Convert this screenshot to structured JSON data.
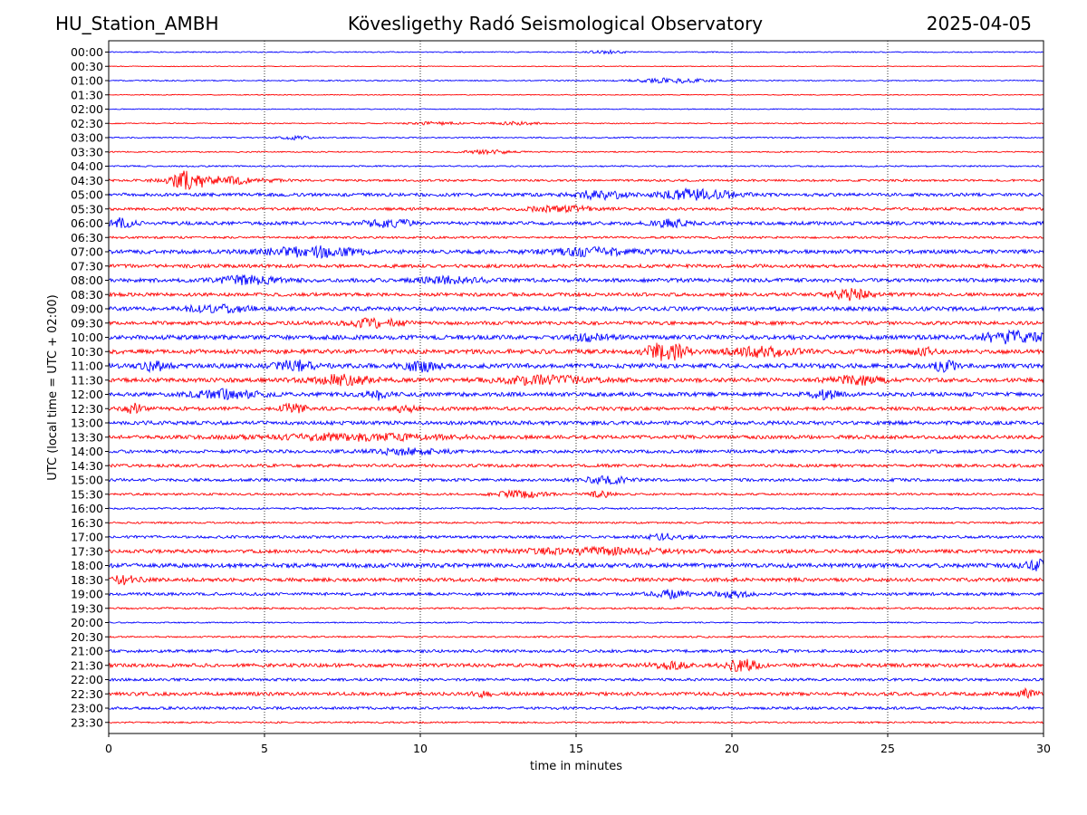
{
  "header": {
    "station": "HU_Station_AMBH",
    "title": "Kövesligethy Radó Seismological Observatory",
    "date": "2025-04-05"
  },
  "chart_data": {
    "type": "line",
    "xlabel": "time in minutes",
    "ylabel": "UTC (local time = UTC + 02:00)",
    "xlim": [
      0,
      30
    ],
    "x_ticks": [
      0,
      5,
      10,
      15,
      20,
      25,
      30
    ],
    "vertical_grid": "dotted at each 5 minutes",
    "colors": {
      "even_hour": "#0000ff",
      "half_hour": "#ff0000"
    },
    "rows": [
      "00:00",
      "00:30",
      "01:00",
      "01:30",
      "02:00",
      "02:30",
      "03:00",
      "03:30",
      "04:00",
      "04:30",
      "05:00",
      "05:30",
      "06:00",
      "06:30",
      "07:00",
      "07:30",
      "08:00",
      "08:30",
      "09:00",
      "09:30",
      "10:00",
      "10:30",
      "11:00",
      "11:30",
      "12:00",
      "12:30",
      "13:00",
      "13:30",
      "14:00",
      "14:30",
      "15:00",
      "15:30",
      "16:00",
      "16:30",
      "17:00",
      "17:30",
      "18:00",
      "18:30",
      "19:00",
      "19:30",
      "20:00",
      "20:30",
      "21:00",
      "21:30",
      "22:00",
      "22:30",
      "23:00",
      "23:30"
    ],
    "noise_level": [
      0.6,
      0.4,
      0.6,
      0.5,
      0.5,
      0.6,
      0.7,
      0.7,
      0.8,
      1.2,
      1.8,
      1.6,
      1.9,
      1.2,
      2.2,
      1.9,
      2.1,
      1.9,
      2.2,
      2.0,
      2.4,
      2.5,
      2.5,
      2.3,
      2.2,
      2.0,
      2.1,
      2.0,
      1.8,
      1.7,
      1.6,
      1.2,
      1.0,
      1.0,
      1.5,
      2.0,
      2.4,
      2.0,
      1.6,
      1.0,
      0.7,
      0.9,
      1.6,
      2.0,
      1.5,
      1.9,
      1.5,
      0.9
    ],
    "events": [
      {
        "row": "00:00",
        "min": 16.0,
        "amp": 1.5,
        "dur": 0.6
      },
      {
        "row": "01:00",
        "min": 18.0,
        "amp": 2.5,
        "dur": 1.2
      },
      {
        "row": "02:30",
        "min": 10.5,
        "amp": 1.6,
        "dur": 0.8
      },
      {
        "row": "02:30",
        "min": 13.0,
        "amp": 1.6,
        "dur": 0.8
      },
      {
        "row": "03:00",
        "min": 6.0,
        "amp": 2.0,
        "dur": 0.5
      },
      {
        "row": "03:30",
        "min": 12.2,
        "amp": 2.0,
        "dur": 0.8
      },
      {
        "row": "04:30",
        "min": 2.5,
        "amp": 9.0,
        "dur": 0.5
      },
      {
        "row": "04:30",
        "min": 3.5,
        "amp": 4.0,
        "dur": 1.5
      },
      {
        "row": "05:00",
        "min": 15.8,
        "amp": 4.5,
        "dur": 0.8
      },
      {
        "row": "05:00",
        "min": 18.8,
        "amp": 6.0,
        "dur": 1.2
      },
      {
        "row": "05:30",
        "min": 14.5,
        "amp": 3.0,
        "dur": 1.0
      },
      {
        "row": "06:00",
        "min": 0.4,
        "amp": 5.0,
        "dur": 0.4
      },
      {
        "row": "06:00",
        "min": 9.0,
        "amp": 4.0,
        "dur": 0.8
      },
      {
        "row": "06:00",
        "min": 18.0,
        "amp": 3.5,
        "dur": 0.6
      },
      {
        "row": "07:00",
        "min": 6.5,
        "amp": 5.0,
        "dur": 1.5
      },
      {
        "row": "07:00",
        "min": 15.5,
        "amp": 3.5,
        "dur": 1.5
      },
      {
        "row": "08:00",
        "min": 4.5,
        "amp": 4.0,
        "dur": 1.0
      },
      {
        "row": "08:00",
        "min": 11.0,
        "amp": 3.5,
        "dur": 1.0
      },
      {
        "row": "08:30",
        "min": 23.8,
        "amp": 5.5,
        "dur": 0.6
      },
      {
        "row": "09:00",
        "min": 3.5,
        "amp": 3.5,
        "dur": 1.0
      },
      {
        "row": "09:30",
        "min": 8.5,
        "amp": 4.0,
        "dur": 1.0
      },
      {
        "row": "10:00",
        "min": 29.0,
        "amp": 6.0,
        "dur": 1.0
      },
      {
        "row": "10:00",
        "min": 15.5,
        "amp": 3.5,
        "dur": 0.6
      },
      {
        "row": "10:30",
        "min": 17.9,
        "amp": 10.0,
        "dur": 0.6
      },
      {
        "row": "10:30",
        "min": 21.0,
        "amp": 5.0,
        "dur": 1.0
      },
      {
        "row": "10:30",
        "min": 26.1,
        "amp": 4.5,
        "dur": 0.3
      },
      {
        "row": "11:00",
        "min": 1.5,
        "amp": 5.0,
        "dur": 0.4
      },
      {
        "row": "11:00",
        "min": 6.0,
        "amp": 5.0,
        "dur": 0.6
      },
      {
        "row": "11:00",
        "min": 10.0,
        "amp": 5.0,
        "dur": 0.6
      },
      {
        "row": "11:00",
        "min": 26.8,
        "amp": 6.0,
        "dur": 0.4
      },
      {
        "row": "11:30",
        "min": 7.5,
        "amp": 5.0,
        "dur": 1.0
      },
      {
        "row": "11:30",
        "min": 14.0,
        "amp": 4.0,
        "dur": 1.5
      },
      {
        "row": "11:30",
        "min": 24.0,
        "amp": 4.5,
        "dur": 0.8
      },
      {
        "row": "12:00",
        "min": 3.8,
        "amp": 4.5,
        "dur": 1.0
      },
      {
        "row": "12:00",
        "min": 8.6,
        "amp": 5.0,
        "dur": 0.4
      },
      {
        "row": "12:00",
        "min": 23.0,
        "amp": 4.0,
        "dur": 0.5
      },
      {
        "row": "12:30",
        "min": 0.8,
        "amp": 4.5,
        "dur": 0.3
      },
      {
        "row": "12:30",
        "min": 5.9,
        "amp": 5.0,
        "dur": 0.4
      },
      {
        "row": "12:30",
        "min": 9.5,
        "amp": 3.5,
        "dur": 0.4
      },
      {
        "row": "13:30",
        "min": 8.0,
        "amp": 3.0,
        "dur": 3.0
      },
      {
        "row": "14:00",
        "min": 9.5,
        "amp": 3.0,
        "dur": 1.2
      },
      {
        "row": "15:00",
        "min": 16.0,
        "amp": 3.5,
        "dur": 0.8
      },
      {
        "row": "15:30",
        "min": 13.2,
        "amp": 3.5,
        "dur": 0.8
      },
      {
        "row": "15:30",
        "min": 15.8,
        "amp": 3.0,
        "dur": 0.4
      },
      {
        "row": "17:00",
        "min": 17.8,
        "amp": 3.0,
        "dur": 0.6
      },
      {
        "row": "17:30",
        "min": 15.5,
        "amp": 3.0,
        "dur": 2.5
      },
      {
        "row": "18:00",
        "min": 29.8,
        "amp": 5.0,
        "dur": 0.4
      },
      {
        "row": "18:30",
        "min": 0.5,
        "amp": 4.0,
        "dur": 0.5
      },
      {
        "row": "19:00",
        "min": 18.0,
        "amp": 4.0,
        "dur": 0.6
      },
      {
        "row": "19:00",
        "min": 20.0,
        "amp": 3.5,
        "dur": 0.6
      },
      {
        "row": "21:30",
        "min": 20.3,
        "amp": 6.0,
        "dur": 0.5
      },
      {
        "row": "21:30",
        "min": 18.0,
        "amp": 3.5,
        "dur": 0.6
      },
      {
        "row": "22:30",
        "min": 29.5,
        "amp": 4.5,
        "dur": 0.3
      },
      {
        "row": "22:30",
        "min": 12.0,
        "amp": 3.0,
        "dur": 0.3
      }
    ]
  }
}
